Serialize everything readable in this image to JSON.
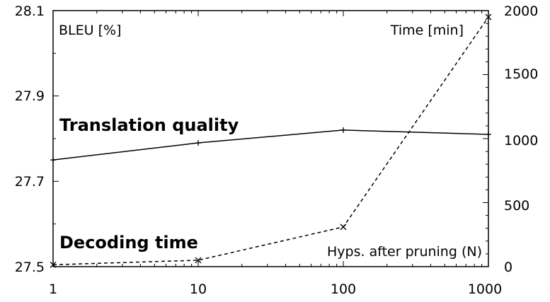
{
  "chart_data": {
    "type": "line",
    "x": [
      1,
      10,
      100,
      1000
    ],
    "x_scale": "log",
    "xlim": [
      1,
      1000
    ],
    "x_ticks": [
      1,
      10,
      100,
      1000
    ],
    "xlabel": "Hyps. after pruning (N)",
    "y_left": {
      "label": "BLEU [%]",
      "lim": [
        27.5,
        28.1
      ],
      "ticks": [
        "27.5",
        "27.7",
        "27.9",
        "28.1"
      ]
    },
    "y_right": {
      "label": "Time [min]",
      "lim": [
        0,
        2000
      ],
      "ticks": [
        "0",
        "500",
        "1000",
        "1500",
        "2000"
      ]
    },
    "grid": false,
    "series": [
      {
        "name": "Translation quality",
        "axis": "left",
        "style": "solid",
        "marker": "+",
        "values": [
          27.75,
          27.79,
          27.82,
          27.81
        ]
      },
      {
        "name": "Decoding time",
        "axis": "right",
        "style": "dashed",
        "marker": "x",
        "values": [
          15,
          50,
          310,
          1950
        ]
      }
    ]
  }
}
